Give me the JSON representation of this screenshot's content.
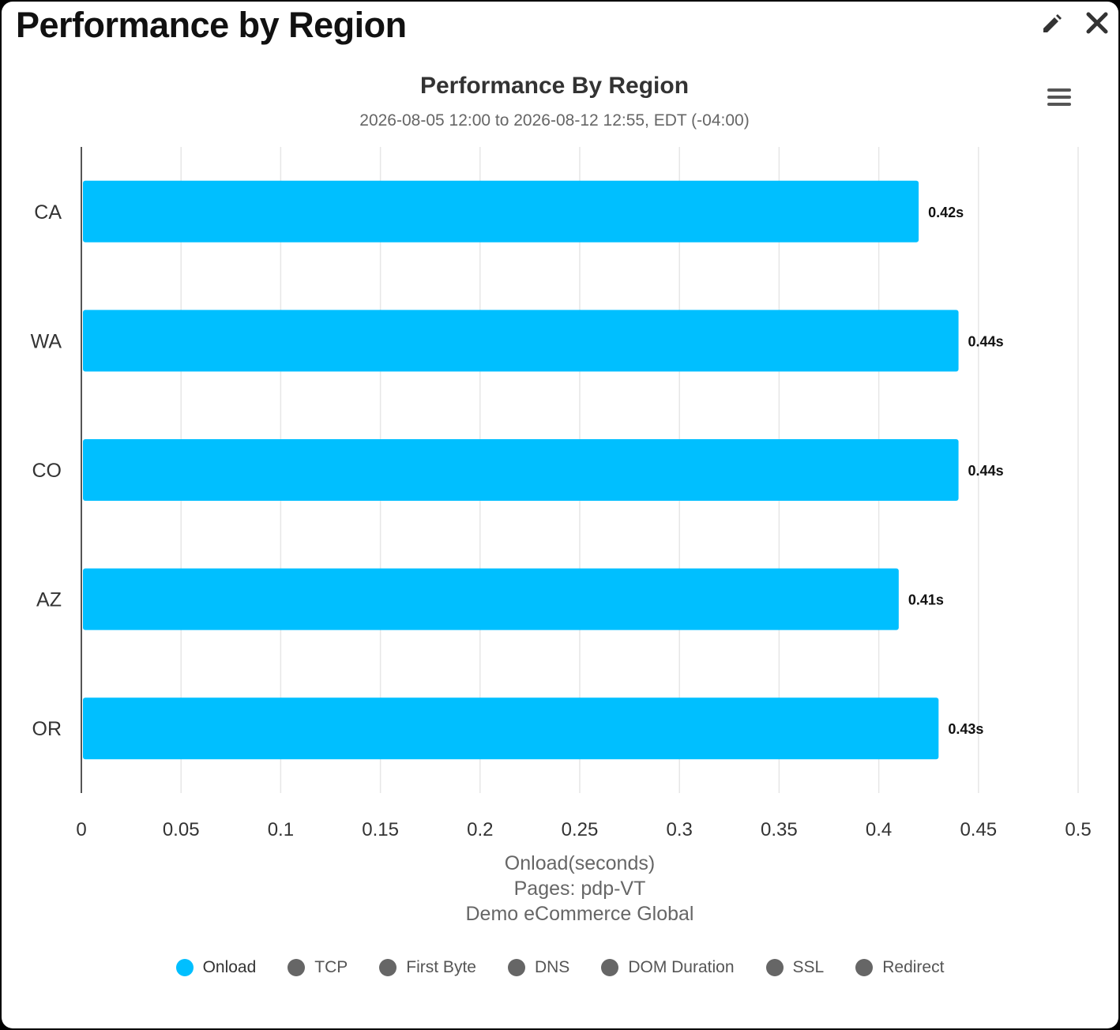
{
  "panel": {
    "title": "Performance by Region",
    "edit_icon": "pencil-icon",
    "close_icon": "close-icon",
    "menu_icon": "hamburger-menu-icon"
  },
  "chart_data": {
    "type": "bar",
    "orientation": "horizontal",
    "title": "Performance By Region",
    "subtitle": "2026-08-05 12:00 to 2026-08-12 12:55, EDT (-04:00)",
    "categories": [
      "CA",
      "WA",
      "CO",
      "AZ",
      "OR"
    ],
    "series": [
      {
        "name": "Onload",
        "values": [
          0.42,
          0.44,
          0.44,
          0.41,
          0.43
        ],
        "color": "#00BFFF"
      }
    ],
    "data_labels": [
      "0.42s",
      "0.44s",
      "0.44s",
      "0.41s",
      "0.43s"
    ],
    "xlim": [
      0,
      0.5
    ],
    "xticks": [
      0,
      0.05,
      0.1,
      0.15,
      0.2,
      0.25,
      0.3,
      0.35,
      0.4,
      0.45,
      0.5
    ],
    "xtick_labels": [
      "0",
      "0.05",
      "0.1",
      "0.15",
      "0.2",
      "0.25",
      "0.3",
      "0.35",
      "0.4",
      "0.45",
      "0.5"
    ],
    "xlabel_lines": [
      "Onload(seconds)",
      "Pages: pdp-VT",
      "Demo eCommerce Global"
    ],
    "grid": true,
    "legend_position": "bottom",
    "legend": [
      {
        "label": "Onload",
        "color": "#00BFFF",
        "active": true
      },
      {
        "label": "TCP",
        "color": "#666666",
        "active": false
      },
      {
        "label": "First Byte",
        "color": "#666666",
        "active": false
      },
      {
        "label": "DNS",
        "color": "#666666",
        "active": false
      },
      {
        "label": "DOM Duration",
        "color": "#666666",
        "active": false
      },
      {
        "label": "SSL",
        "color": "#666666",
        "active": false
      },
      {
        "label": "Redirect",
        "color": "#666666",
        "active": false
      }
    ]
  }
}
